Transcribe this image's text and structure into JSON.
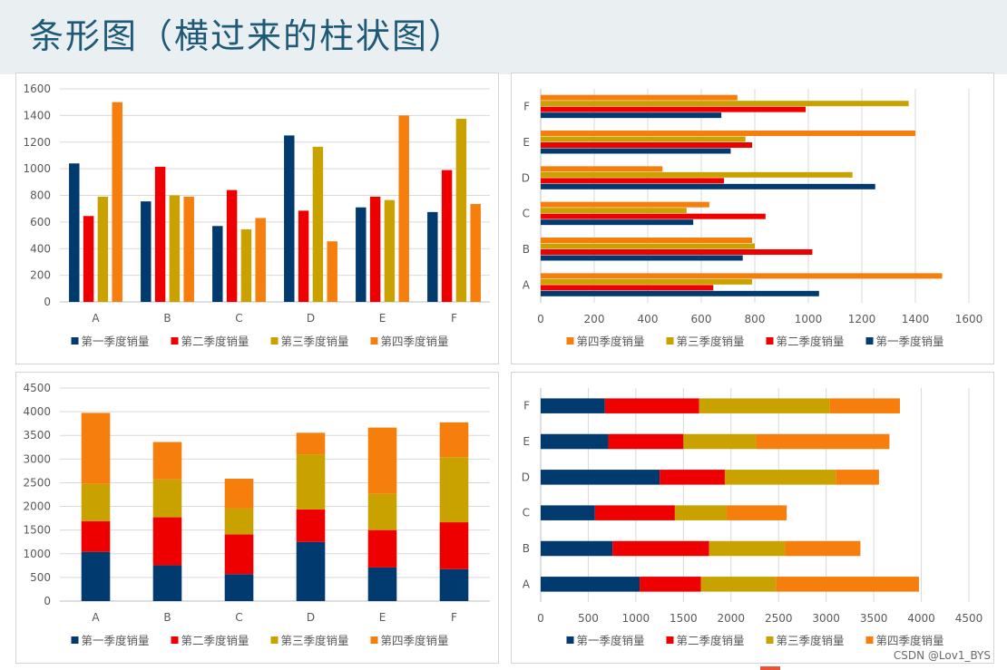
{
  "page": {
    "title": "条形图（横过来的柱状图）",
    "watermark": "CSDN @Lov1_BYS"
  },
  "colors": {
    "series": [
      "#003a6e",
      "#ee0000",
      "#c9a200",
      "#f67e0d"
    ],
    "grid": "#d9d9d9",
    "axis": "#bfbfbf",
    "text": "#595959"
  },
  "chart_data": [
    {
      "type": "bar",
      "orientation": "vertical",
      "stacked": false,
      "categories": [
        "A",
        "B",
        "C",
        "D",
        "E",
        "F"
      ],
      "series": [
        {
          "name": "第一季度销量",
          "values": [
            1040,
            755,
            570,
            1250,
            710,
            675
          ]
        },
        {
          "name": "第二季度销量",
          "values": [
            645,
            1015,
            840,
            685,
            790,
            990
          ]
        },
        {
          "name": "第三季度销量",
          "values": [
            790,
            800,
            545,
            1165,
            765,
            1375
          ]
        },
        {
          "name": "第四季度销量",
          "values": [
            1500,
            790,
            630,
            455,
            1400,
            735
          ]
        }
      ],
      "ylim": [
        0,
        1600
      ],
      "yticks": [
        0,
        200,
        400,
        600,
        800,
        1000,
        1200,
        1400,
        1600
      ],
      "legend": "bottom",
      "legend_order": [
        0,
        1,
        2,
        3
      ]
    },
    {
      "type": "bar",
      "orientation": "horizontal",
      "stacked": false,
      "categories": [
        "A",
        "B",
        "C",
        "D",
        "E",
        "F"
      ],
      "series": [
        {
          "name": "第一季度销量",
          "values": [
            1040,
            755,
            570,
            1250,
            710,
            675
          ]
        },
        {
          "name": "第二季度销量",
          "values": [
            645,
            1015,
            840,
            685,
            790,
            990
          ]
        },
        {
          "name": "第三季度销量",
          "values": [
            790,
            800,
            545,
            1165,
            765,
            1375
          ]
        },
        {
          "name": "第四季度销量",
          "values": [
            1500,
            790,
            630,
            455,
            1400,
            735
          ]
        }
      ],
      "xlim": [
        0,
        1600
      ],
      "xticks": [
        0,
        200,
        400,
        600,
        800,
        1000,
        1200,
        1400,
        1600
      ],
      "legend": "bottom",
      "legend_order": [
        3,
        2,
        1,
        0
      ]
    },
    {
      "type": "bar",
      "orientation": "vertical",
      "stacked": true,
      "categories": [
        "A",
        "B",
        "C",
        "D",
        "E",
        "F"
      ],
      "series": [
        {
          "name": "第一季度销量",
          "values": [
            1040,
            755,
            570,
            1250,
            710,
            675
          ]
        },
        {
          "name": "第二季度销量",
          "values": [
            645,
            1015,
            840,
            685,
            790,
            990
          ]
        },
        {
          "name": "第三季度销量",
          "values": [
            790,
            800,
            545,
            1165,
            765,
            1375
          ]
        },
        {
          "name": "第四季度销量",
          "values": [
            1500,
            790,
            630,
            455,
            1400,
            735
          ]
        }
      ],
      "ylim": [
        0,
        4500
      ],
      "yticks": [
        0,
        500,
        1000,
        1500,
        2000,
        2500,
        3000,
        3500,
        4000,
        4500
      ],
      "legend": "bottom",
      "legend_order": [
        0,
        1,
        2,
        3
      ]
    },
    {
      "type": "bar",
      "orientation": "horizontal",
      "stacked": true,
      "categories": [
        "A",
        "B",
        "C",
        "D",
        "E",
        "F"
      ],
      "series": [
        {
          "name": "第一季度销量",
          "values": [
            1040,
            755,
            570,
            1250,
            710,
            675
          ]
        },
        {
          "name": "第二季度销量",
          "values": [
            645,
            1015,
            840,
            685,
            790,
            990
          ]
        },
        {
          "name": "第三季度销量",
          "values": [
            790,
            800,
            545,
            1165,
            765,
            1375
          ]
        },
        {
          "name": "第四季度销量",
          "values": [
            1500,
            790,
            630,
            455,
            1400,
            735
          ]
        }
      ],
      "xlim": [
        0,
        4500
      ],
      "xticks": [
        0,
        500,
        1000,
        1500,
        2000,
        2500,
        3000,
        3500,
        4000,
        4500
      ],
      "legend": "bottom",
      "legend_order": [
        0,
        1,
        2,
        3
      ]
    }
  ]
}
